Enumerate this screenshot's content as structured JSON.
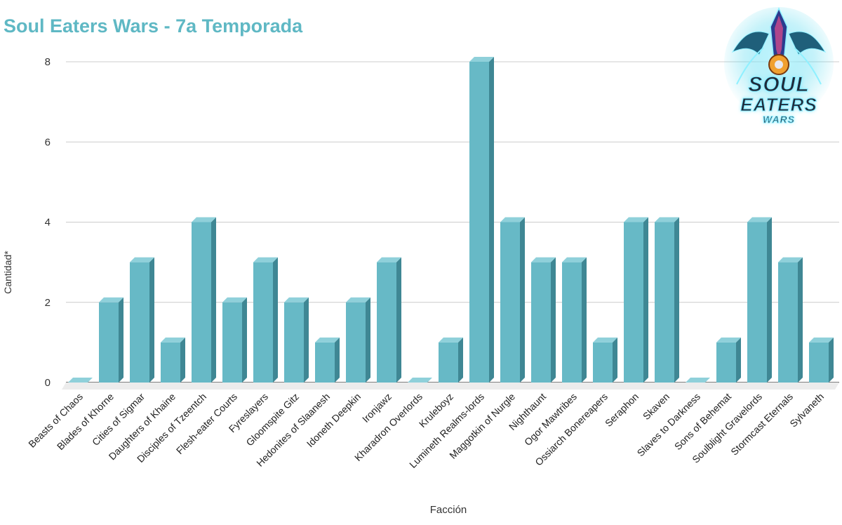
{
  "chart_data": {
    "type": "bar",
    "title": "Soul Eaters Wars - 7a Temporada",
    "xlabel": "Facción",
    "ylabel": "Cantidad*",
    "ylim": [
      0,
      8
    ],
    "yticks": [
      0,
      2,
      4,
      6,
      8
    ],
    "grid": true,
    "bar_color": "#67b9c6",
    "bar_side_color": "#3f8794",
    "bar_top_color": "#8fd0da",
    "title_color": "#5fb8c4",
    "categories": [
      "Beasts of Chaos",
      "Blades of Khorne",
      "Cities of Sigmar",
      "Daughters of Khaine",
      "Disciples of Tzeentch",
      "Flesh-eater Courts",
      "Fyreslayers",
      "Gloomspite Gitz",
      "Hedonites of Slaanesh",
      "Idoneth Deepkin",
      "Ironjawz",
      "Kharadron Overlords",
      "Kruleboyz",
      "Lumineth Realms-lords",
      "Maggotkin of Nurgle",
      "Nighthaunt",
      "Ogor Mawtribes",
      "Ossiarch Bonereapers",
      "Seraphon",
      "Skaven",
      "Slaves to Darkness",
      "Sons of Behemat",
      "Soulblight Gravelords",
      "Stormcast Eternals",
      "Sylvaneth"
    ],
    "values": [
      0,
      2,
      3,
      1,
      4,
      2,
      3,
      2,
      1,
      2,
      3,
      0,
      1,
      8,
      4,
      3,
      3,
      1,
      4,
      4,
      0,
      1,
      4,
      3,
      1
    ]
  },
  "logo": {
    "icon": "soul-eaters-wars-logo",
    "line1": "SOUL",
    "line2": "EATERS",
    "line3": "WARS"
  }
}
